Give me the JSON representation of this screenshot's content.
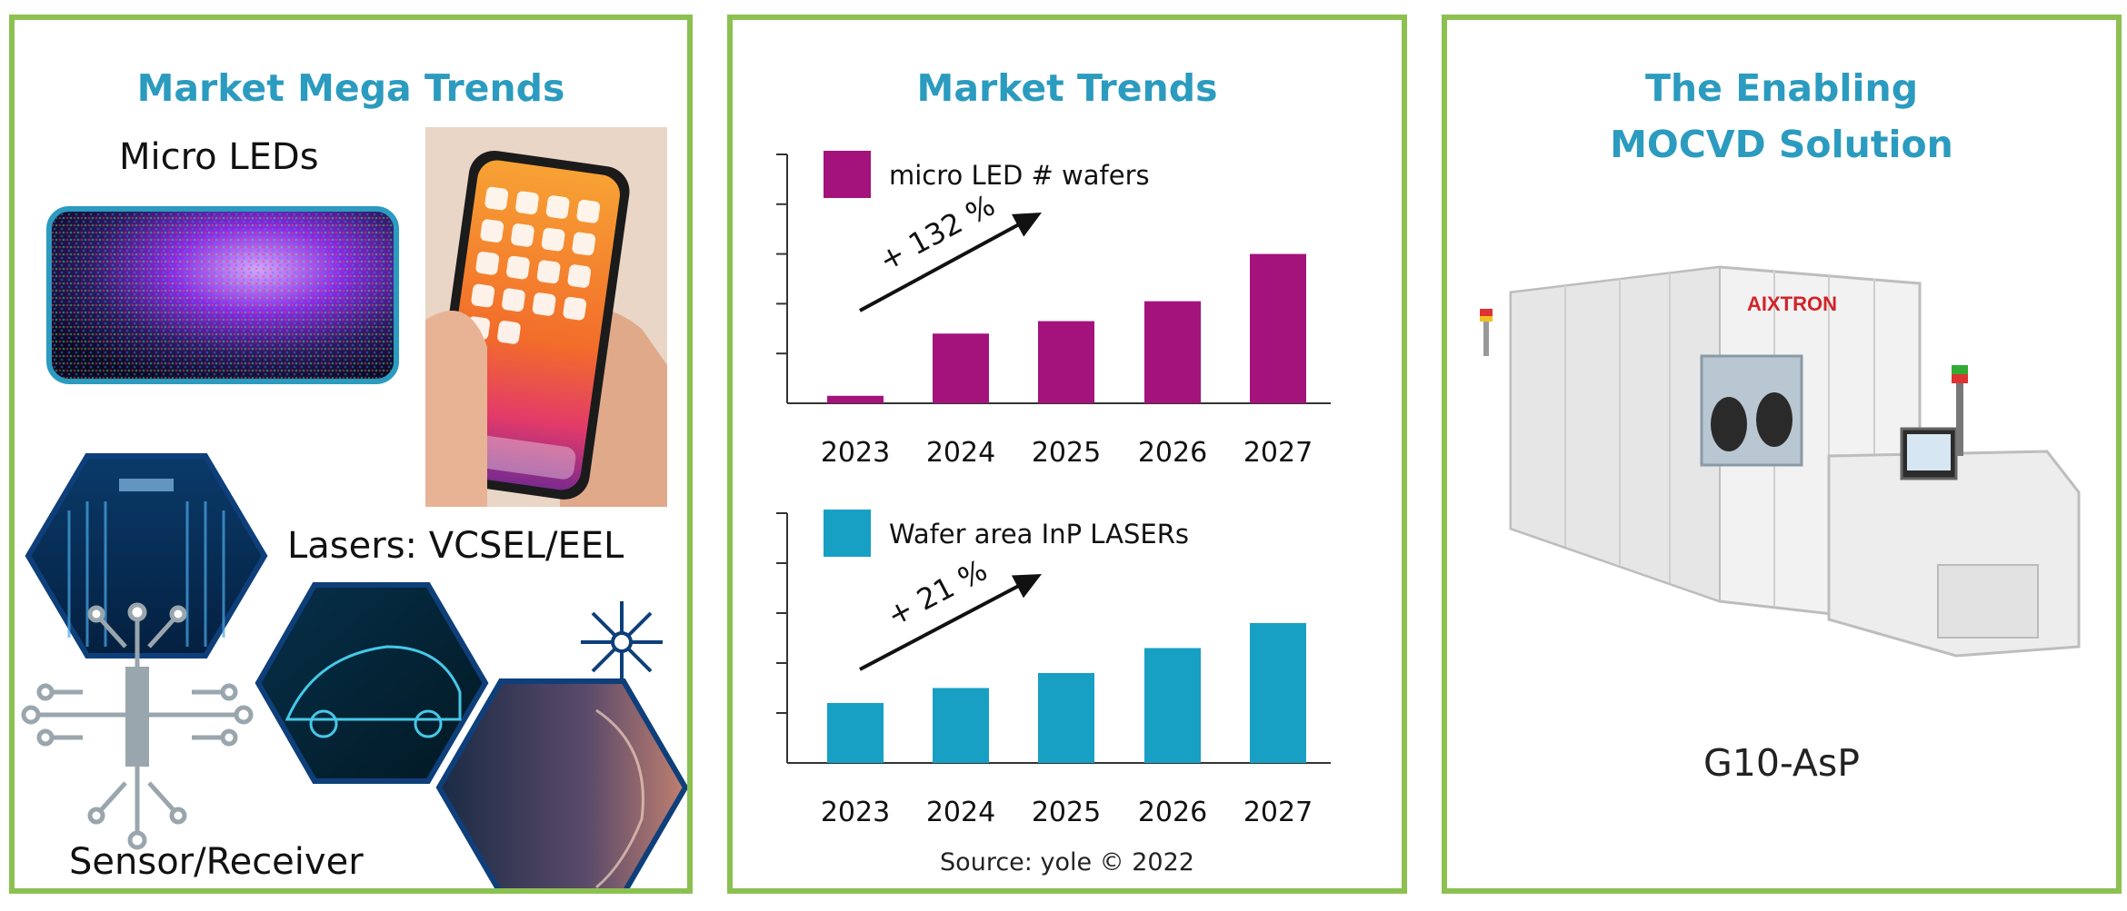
{
  "panels": {
    "mega": {
      "title": "Market Mega Trends",
      "labels": {
        "micro_leds": "Micro LEDs",
        "lasers": "Lasers: VCSEL/EEL",
        "sensor": "Sensor/Receiver"
      }
    },
    "trends": {
      "title": "Market Trends",
      "source": "Source: yole © 2022"
    },
    "solution": {
      "title_line1": "The Enabling",
      "title_line2": "MOCVD Solution",
      "machine_name": "G10-AsP",
      "machine_brand": "AIXTRON"
    }
  },
  "colors": {
    "panel_border": "#8cc152",
    "title": "#2b9bbf",
    "magenta": "#a3137b",
    "cyan": "#17a0c4"
  },
  "chart_data": [
    {
      "type": "bar",
      "title": "",
      "legend": "micro LED # wafers",
      "categories": [
        "2023",
        "2024",
        "2025",
        "2026",
        "2027"
      ],
      "values": [
        0.3,
        2.8,
        3.3,
        4.1,
        6.0
      ],
      "ylim": [
        0,
        10
      ],
      "annotation": "+ 132 %",
      "color": "#a3137b"
    },
    {
      "type": "bar",
      "title": "",
      "legend": "Wafer area InP LASERs",
      "categories": [
        "2023",
        "2024",
        "2025",
        "2026",
        "2027"
      ],
      "values": [
        2.4,
        3.0,
        3.6,
        4.6,
        5.6
      ],
      "ylim": [
        0,
        10
      ],
      "annotation": "+ 21 %",
      "color": "#17a0c4"
    }
  ]
}
